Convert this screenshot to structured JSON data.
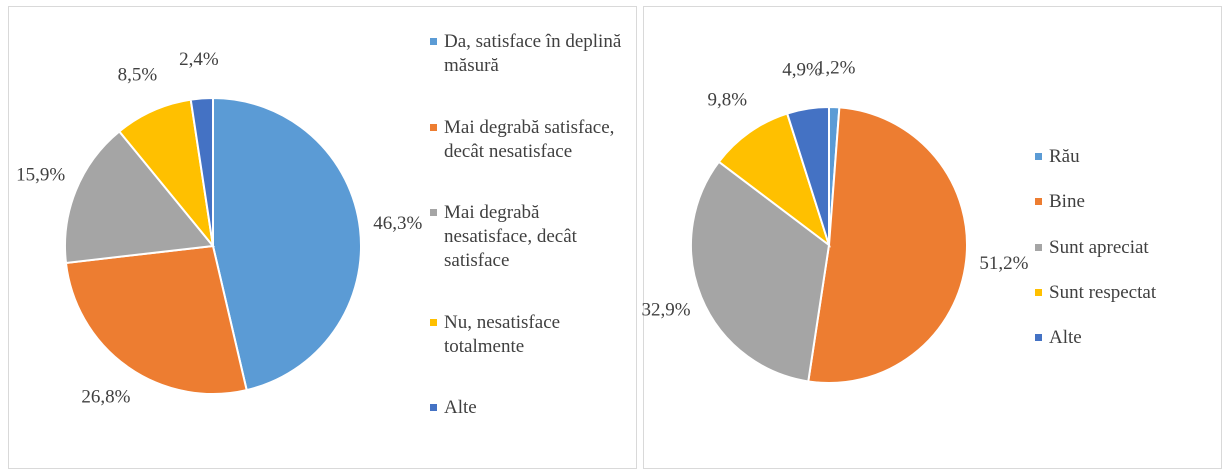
{
  "chart_data": [
    {
      "type": "pie",
      "categories": [
        "Da, satisface în deplină măsură",
        "Mai degrabă satisface, decât nesatisface",
        "Mai degrabă nesatisface, decât satisface",
        "Nu, nesatisface totalmente",
        "Alte"
      ],
      "values": [
        46.3,
        26.8,
        15.9,
        8.5,
        2.4
      ],
      "value_labels": [
        "46,3%",
        "26,8%",
        "15,9%",
        "8,5%",
        "2,4%"
      ],
      "colors": [
        "#5b9bd5",
        "#ed7d31",
        "#a5a5a5",
        "#ffc000",
        "#4472c4"
      ],
      "legend": "right"
    },
    {
      "type": "pie",
      "categories": [
        "Rău",
        "Bine",
        "Sunt apreciat",
        "Sunt respectat",
        "Alte"
      ],
      "values": [
        1.2,
        51.2,
        32.9,
        9.8,
        4.9
      ],
      "value_labels": [
        "1,2%",
        "51,2%",
        "32,9%",
        "9,8%",
        "4,9%"
      ],
      "colors": [
        "#5b9bd5",
        "#ed7d31",
        "#a5a5a5",
        "#ffc000",
        "#4472c4"
      ],
      "legend": "right"
    }
  ]
}
